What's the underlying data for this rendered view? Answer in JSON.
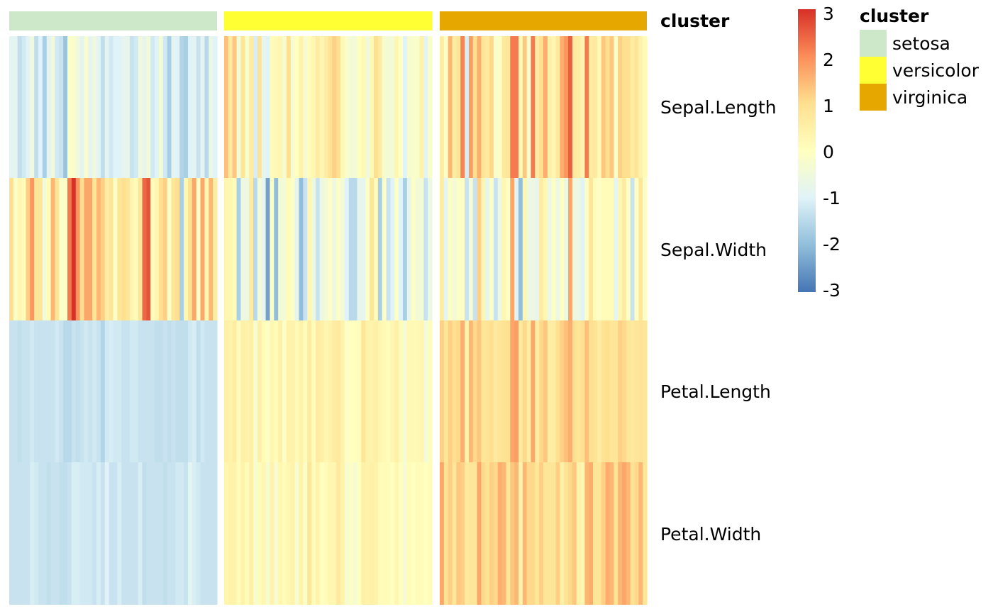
{
  "chart_data": {
    "type": "heatmap",
    "rows": [
      "Sepal.Length",
      "Sepal.Width",
      "Petal.Length",
      "Petal.Width"
    ],
    "annotation": {
      "title": "cluster",
      "groups": [
        {
          "name": "setosa",
          "color": "#CCE8C8"
        },
        {
          "name": "versicolor",
          "color": "#FFFF33"
        },
        {
          "name": "virginica",
          "color": "#E6A800"
        }
      ]
    },
    "legend": {
      "title": "cluster",
      "entries": [
        "setosa",
        "versicolor",
        "virginica"
      ]
    },
    "colorbar": {
      "ticks": [
        "3",
        "2",
        "1",
        "0",
        "-1",
        "-2",
        "-3"
      ],
      "range": [
        -3,
        3
      ],
      "colors": [
        "#4575B4",
        "#91BFDB",
        "#E0F3F8",
        "#FFFFBF",
        "#FEE090",
        "#FC8D59",
        "#D73027"
      ]
    },
    "matrix": {
      "setosa": [
        [
          -0.9,
          -0.9,
          -1.4,
          -1.2,
          -1.0,
          -0.5,
          -1.4,
          -1.0,
          -1.7,
          -0.9,
          -0.5,
          -1.2,
          -1.3,
          -1.9,
          -0.1,
          -0.2,
          -0.5,
          -0.9,
          -0.2,
          -0.9,
          -0.5,
          -0.9,
          -1.4,
          -0.9,
          -1.2,
          -1.0,
          -1.0,
          -0.8,
          -0.8,
          -1.3,
          -1.2,
          -0.5,
          -0.8,
          -0.4,
          -1.2,
          -1.0,
          -0.4,
          -1.2,
          -1.7,
          -0.9,
          -1.0,
          -1.6,
          -1.7,
          -1.0,
          -0.9,
          -1.3,
          -0.9,
          -1.5,
          -0.7,
          -1.0
        ],
        [
          1.0,
          -0.1,
          0.3,
          0.1,
          1.2,
          1.9,
          0.8,
          0.8,
          -0.4,
          0.1,
          1.5,
          0.8,
          -0.1,
          -0.1,
          2.2,
          3.1,
          1.9,
          1.0,
          1.7,
          1.7,
          0.8,
          1.5,
          1.2,
          0.6,
          0.8,
          -0.1,
          0.8,
          1.0,
          0.8,
          0.3,
          0.1,
          0.8,
          2.4,
          2.6,
          0.1,
          0.3,
          1.0,
          1.2,
          -0.1,
          0.8,
          1.0,
          -1.7,
          0.3,
          1.0,
          1.7,
          -0.1,
          1.7,
          0.3,
          1.5,
          0.6
        ],
        [
          -1.3,
          -1.3,
          -1.4,
          -1.3,
          -1.3,
          -1.2,
          -1.3,
          -1.3,
          -1.3,
          -1.3,
          -1.3,
          -1.2,
          -1.3,
          -1.5,
          -1.5,
          -1.3,
          -1.4,
          -1.3,
          -1.2,
          -1.3,
          -1.2,
          -1.3,
          -1.6,
          -1.2,
          -1.1,
          -1.2,
          -1.2,
          -1.3,
          -1.3,
          -1.2,
          -1.2,
          -1.3,
          -1.3,
          -1.3,
          -1.3,
          -1.4,
          -1.4,
          -1.3,
          -1.4,
          -1.3,
          -1.4,
          -1.4,
          -1.4,
          -1.2,
          -1.1,
          -1.4,
          -1.2,
          -1.3,
          -1.3,
          -1.3
        ],
        [
          -1.3,
          -1.3,
          -1.3,
          -1.3,
          -1.3,
          -1.1,
          -1.2,
          -1.3,
          -1.3,
          -1.4,
          -1.3,
          -1.3,
          -1.4,
          -1.4,
          -1.3,
          -1.1,
          -1.1,
          -1.2,
          -1.2,
          -1.2,
          -1.3,
          -1.1,
          -1.3,
          -1.0,
          -1.3,
          -1.3,
          -1.1,
          -1.3,
          -1.3,
          -1.3,
          -1.3,
          -1.1,
          -1.4,
          -1.3,
          -1.3,
          -1.3,
          -1.3,
          -1.4,
          -1.3,
          -1.3,
          -1.2,
          -1.2,
          -1.3,
          -0.9,
          -1.1,
          -1.2,
          -1.3,
          -1.3,
          -1.3,
          -1.3
        ]
      ],
      "versicolor": [
        [
          1.4,
          0.7,
          1.3,
          -0.4,
          0.8,
          -0.2,
          0.6,
          -1.1,
          0.9,
          -0.8,
          -1.0,
          0.1,
          0.2,
          0.3,
          -0.3,
          1.0,
          -0.3,
          0.0,
          0.4,
          -0.3,
          0.1,
          0.3,
          0.6,
          0.3,
          0.6,
          0.9,
          1.2,
          1.0,
          0.2,
          -0.2,
          -0.4,
          -0.4,
          0.0,
          0.2,
          -0.5,
          0.2,
          1.0,
          0.6,
          -0.3,
          -0.4,
          -0.4,
          0.3,
          0.0,
          -1.0,
          -0.3,
          -0.2,
          -0.2,
          0.4,
          -0.9,
          -0.2
        ],
        [
          0.3,
          0.3,
          0.1,
          -1.7,
          -0.6,
          -0.6,
          0.6,
          -1.5,
          -0.4,
          -0.8,
          -2.4,
          -0.1,
          -2.0,
          -0.4,
          -0.4,
          0.1,
          -0.1,
          -0.8,
          -2.0,
          -1.3,
          0.3,
          -0.6,
          -1.3,
          -0.6,
          -0.4,
          -0.1,
          -0.6,
          -0.1,
          -0.4,
          -1.0,
          -1.5,
          -1.5,
          -0.8,
          -0.8,
          -0.1,
          0.8,
          0.1,
          -1.7,
          -0.1,
          -1.3,
          -1.0,
          -0.1,
          -1.0,
          -1.7,
          -0.8,
          -0.1,
          -0.4,
          -0.4,
          -1.3,
          -0.6
        ],
        [
          0.5,
          0.4,
          0.6,
          0.1,
          0.5,
          0.4,
          0.5,
          -0.3,
          0.5,
          0.1,
          -0.1,
          0.3,
          0.1,
          0.5,
          -0.1,
          0.4,
          0.4,
          0.2,
          0.4,
          0.1,
          0.6,
          0.1,
          0.6,
          0.5,
          0.3,
          0.4,
          0.6,
          0.7,
          0.4,
          -0.1,
          0.0,
          0.0,
          0.1,
          0.8,
          0.4,
          0.4,
          0.5,
          0.3,
          0.2,
          0.1,
          0.3,
          0.5,
          0.1,
          -0.3,
          0.2,
          0.2,
          0.2,
          0.3,
          -0.4,
          0.1
        ],
        [
          0.3,
          0.4,
          0.4,
          0.1,
          0.4,
          0.1,
          0.5,
          -0.3,
          0.1,
          0.3,
          -0.3,
          0.4,
          -0.3,
          0.3,
          0.1,
          0.3,
          0.4,
          -0.3,
          0.4,
          -0.1,
          0.8,
          0.1,
          0.4,
          0.0,
          0.1,
          0.3,
          0.3,
          0.7,
          0.4,
          -0.3,
          -0.1,
          -0.3,
          0.0,
          0.5,
          0.4,
          0.5,
          0.4,
          0.1,
          0.1,
          0.1,
          0.0,
          0.3,
          0.0,
          -0.3,
          0.1,
          0.0,
          0.1,
          0.1,
          0.0,
          0.1
        ]
      ],
      "virginica": [
        [
          0.6,
          -0.1,
          1.5,
          0.6,
          0.8,
          2.1,
          -1.1,
          1.8,
          1.0,
          1.6,
          0.8,
          0.7,
          1.1,
          -0.2,
          -0.1,
          0.7,
          0.8,
          2.2,
          2.2,
          0.2,
          1.3,
          -0.3,
          2.2,
          0.6,
          1.0,
          1.6,
          0.5,
          0.3,
          0.7,
          1.6,
          1.9,
          2.5,
          0.7,
          0.6,
          0.3,
          2.2,
          0.6,
          0.7,
          0.2,
          1.3,
          1.0,
          1.3,
          -0.1,
          1.2,
          1.0,
          1.0,
          0.6,
          0.8,
          0.4,
          0.1
        ],
        [
          0.6,
          -0.8,
          -0.1,
          -0.4,
          -0.1,
          -0.1,
          -1.3,
          -0.4,
          -1.3,
          1.2,
          0.3,
          -0.8,
          -0.1,
          -1.3,
          -0.6,
          0.3,
          -0.1,
          1.7,
          -1.0,
          -2.0,
          0.3,
          -0.6,
          -0.6,
          -0.8,
          0.6,
          0.3,
          -0.6,
          -0.1,
          -0.6,
          -0.1,
          -0.6,
          1.7,
          -0.6,
          -0.6,
          -1.0,
          -0.1,
          0.8,
          0.1,
          -0.1,
          0.1,
          0.1,
          0.1,
          -0.8,
          0.3,
          0.6,
          -0.1,
          -1.3,
          -0.1,
          0.8,
          -0.1
        ],
        [
          1.2,
          0.8,
          1.2,
          1.0,
          1.1,
          1.6,
          0.4,
          1.5,
          1.1,
          1.3,
          0.8,
          0.9,
          1.0,
          0.7,
          0.8,
          0.9,
          1.0,
          1.7,
          1.8,
          0.7,
          1.1,
          0.6,
          1.7,
          0.6,
          1.1,
          1.3,
          0.6,
          0.6,
          1.0,
          1.2,
          1.4,
          1.6,
          1.0,
          0.8,
          1.0,
          1.4,
          1.0,
          0.9,
          0.6,
          0.9,
          1.0,
          0.8,
          0.8,
          1.2,
          1.1,
          0.8,
          0.7,
          0.8,
          0.9,
          0.8
        ],
        [
          1.7,
          0.9,
          1.2,
          0.8,
          1.3,
          1.2,
          0.7,
          0.8,
          0.8,
          1.7,
          1.1,
          0.9,
          1.2,
          1.1,
          1.6,
          1.5,
          0.8,
          1.3,
          1.5,
          0.4,
          1.5,
          1.1,
          1.1,
          0.8,
          1.2,
          0.8,
          0.8,
          0.8,
          1.2,
          0.5,
          0.9,
          1.1,
          1.3,
          0.4,
          0.3,
          1.5,
          1.6,
          0.8,
          0.8,
          1.2,
          1.6,
          1.5,
          0.9,
          1.5,
          1.7,
          1.5,
          0.9,
          1.1,
          1.5,
          0.8
        ]
      ]
    }
  }
}
